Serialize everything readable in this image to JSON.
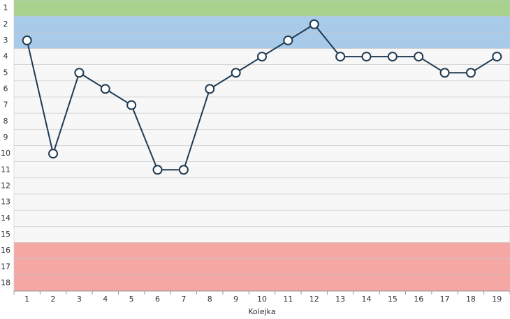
{
  "chart_data": {
    "type": "line",
    "x_label": "Kolejka",
    "categories": [
      "1",
      "2",
      "3",
      "4",
      "5",
      "6",
      "7",
      "8",
      "9",
      "10",
      "11",
      "12",
      "13",
      "14",
      "15",
      "16",
      "17",
      "18",
      "19"
    ],
    "values": [
      3,
      10,
      5,
      6,
      7,
      11,
      11,
      6,
      5,
      4,
      3,
      2,
      4,
      4,
      4,
      4,
      5,
      5,
      4
    ],
    "color": "#1f3a52",
    "ylim": [
      18.5,
      0.5
    ],
    "yticks": [
      1,
      2,
      3,
      4,
      5,
      6,
      7,
      8,
      9,
      10,
      11,
      12,
      13,
      14,
      15,
      16,
      17,
      18
    ],
    "grid": true,
    "bands": [
      {
        "from": 1,
        "to": 1,
        "color": "#a9d18e"
      },
      {
        "from": 2,
        "to": 3,
        "color": "#a7cbe8"
      },
      {
        "from": 16,
        "to": 18,
        "color": "#f4a7a3"
      }
    ]
  }
}
